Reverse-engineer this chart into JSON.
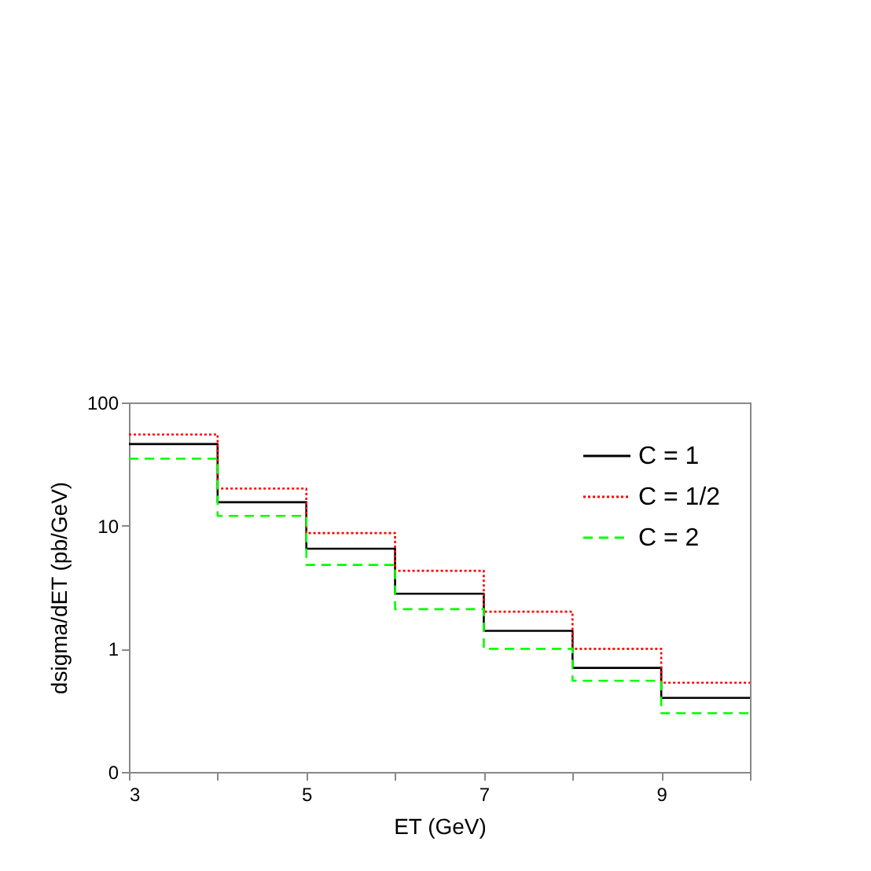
{
  "chart_data": {
    "type": "histogram",
    "xlabel": "ET (GeV)",
    "ylabel": "dsigma/dET   (pb/GeV)",
    "bins": [
      3,
      4,
      5,
      6,
      7,
      8,
      9,
      10
    ],
    "series": [
      {
        "name": "C = 1",
        "color": "#000000",
        "line_style": "solid",
        "values": [
          46,
          15.5,
          6.5,
          2.8,
          1.4,
          0.7,
          0.4
        ]
      },
      {
        "name": "C = 1/2",
        "color": "#ff0000",
        "line_style": "dotted",
        "values": [
          55,
          20,
          8.7,
          4.3,
          2.0,
          1.0,
          0.53
        ]
      },
      {
        "name": "C = 2",
        "color": "#00ff00",
        "line_style": "dashed",
        "values": [
          35,
          12,
          4.8,
          2.1,
          1.0,
          0.55,
          0.3
        ]
      }
    ],
    "log": "y",
    "xlim": [
      3,
      10
    ],
    "ylim": [
      0.1,
      100
    ],
    "xticks": [
      3,
      {
        "value": 4,
        "label": null
      },
      5,
      {
        "value": 6,
        "label": null
      },
      7,
      {
        "value": 8,
        "label": null
      },
      9,
      {
        "value": 10,
        "label": null
      }
    ],
    "yticks": [
      {
        "value": 0.1,
        "label": "0"
      },
      1,
      10,
      100
    ],
    "grid": false,
    "legend": "top right"
  }
}
